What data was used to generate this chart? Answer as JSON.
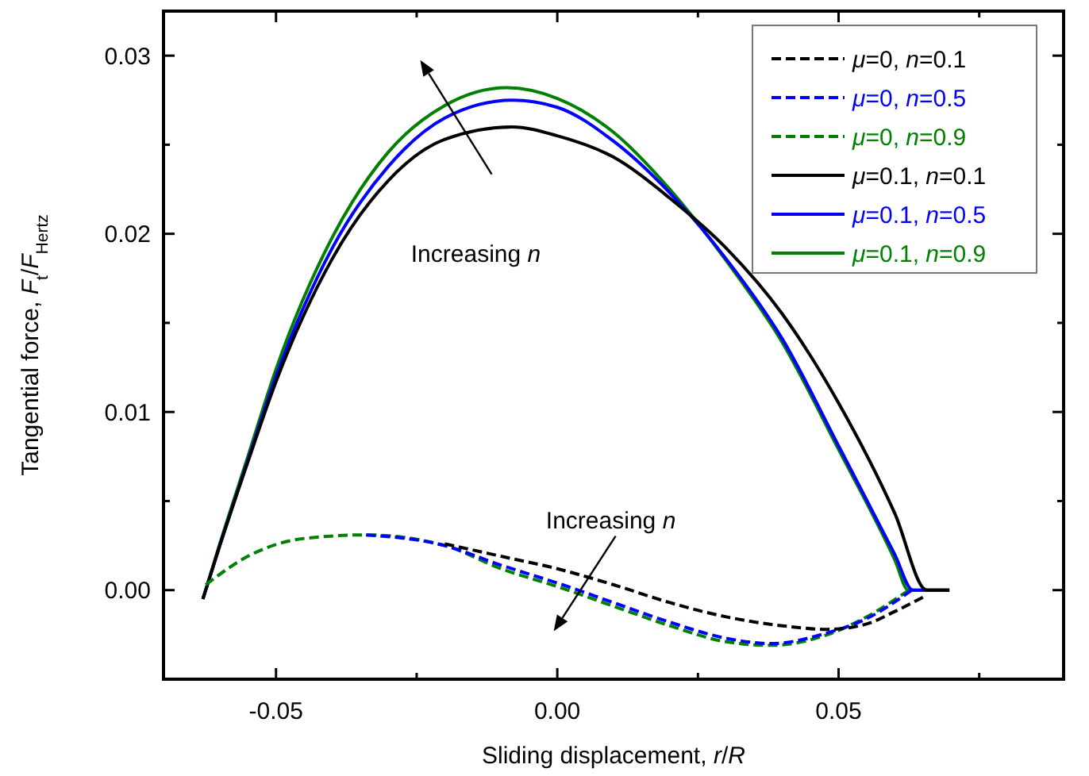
{
  "chart_data": {
    "type": "line",
    "xlabel": "Sliding displacement, r/R",
    "ylabel": "Tangential force, F$_{t}$/F$_{Hertz}$",
    "xlim": [
      -0.07,
      0.09
    ],
    "ylim": [
      -0.005,
      0.0325
    ],
    "xticks": [
      {
        "value": -0.05,
        "label": "-0.05"
      },
      {
        "value": -0.025,
        "label": null
      },
      {
        "value": 0,
        "label": "0.00"
      },
      {
        "value": 0.025,
        "label": null
      },
      {
        "value": 0.05,
        "label": "0.05"
      },
      {
        "value": 0.075,
        "label": null
      }
    ],
    "yticks": [
      {
        "value": 0,
        "label": "0.00"
      },
      {
        "value": 0.005,
        "label": null
      },
      {
        "value": 0.01,
        "label": "0.01"
      },
      {
        "value": 0.015,
        "label": null
      },
      {
        "value": 0.02,
        "label": "0.02"
      },
      {
        "value": 0.025,
        "label": null
      },
      {
        "value": 0.03,
        "label": "0.03"
      }
    ],
    "grid": false,
    "legend": "top right",
    "marker": "none",
    "series": [
      {
        "name": "μ=0, n=0.1",
        "color": "#000000",
        "line_style": "dashed",
        "x": [
          -0.02,
          -0.01,
          0,
          0.01,
          0.02,
          0.03,
          0.04,
          0.048,
          0.055,
          0.06,
          0.065
        ],
        "values": [
          0.0026,
          0.0019,
          0.0012,
          0.0003,
          -0.0007,
          -0.0015,
          -0.002,
          -0.0022,
          -0.0019,
          -0.0012,
          -0.0004
        ]
      },
      {
        "name": "μ=0, n=0.5",
        "color": "#0000ff",
        "line_style": "dashed",
        "x": [
          -0.034,
          -0.02,
          -0.01,
          0,
          0.01,
          0.02,
          0.03,
          0.038,
          0.048,
          0.055,
          0.063
        ],
        "values": [
          0.0031,
          0.0025,
          0.0014,
          0.0004,
          -0.0007,
          -0.0018,
          -0.0027,
          -0.003,
          -0.0024,
          -0.0016,
          0
        ]
      },
      {
        "name": "μ=0, n=0.9",
        "color": "#008000",
        "line_style": "dashed",
        "x": [
          -0.0625,
          -0.055,
          -0.045,
          -0.034,
          -0.02,
          -0.01,
          0,
          0.01,
          0.02,
          0.03,
          0.038,
          0.048,
          0.055,
          0.0625
        ],
        "values": [
          0.0003,
          0.0019,
          0.0029,
          0.0031,
          0.0025,
          0.0012,
          0.0002,
          -0.0009,
          -0.002,
          -0.0029,
          -0.0031,
          -0.0025,
          -0.0015,
          0
        ]
      },
      {
        "name": "μ=0.1, n=0.1",
        "color": "#000000",
        "line_style": "solid",
        "x": [
          -0.063,
          -0.06,
          -0.055,
          -0.05,
          -0.04,
          -0.03,
          -0.02,
          -0.008,
          0,
          0.01,
          0.02,
          0.03,
          0.04,
          0.05,
          0.06,
          0.0657,
          0.0697
        ],
        "values": [
          -0.0005,
          0.0025,
          0.0072,
          0.0117,
          0.0186,
          0.023,
          0.0253,
          0.026,
          0.0255,
          0.0243,
          0.022,
          0.0192,
          0.0155,
          0.0105,
          0.0043,
          0,
          0
        ]
      },
      {
        "name": "μ=0.1, n=0.5",
        "color": "#0000ff",
        "line_style": "solid",
        "x": [
          -0.063,
          -0.06,
          -0.055,
          -0.05,
          -0.04,
          -0.03,
          -0.02,
          -0.008,
          0,
          0.01,
          0.02,
          0.03,
          0.04,
          0.05,
          0.06,
          0.0632,
          0.0697
        ],
        "values": [
          -0.0005,
          0.0025,
          0.0073,
          0.012,
          0.0192,
          0.0238,
          0.0265,
          0.0275,
          0.0271,
          0.0252,
          0.0223,
          0.0186,
          0.0141,
          0.0081,
          0.002,
          0,
          0
        ]
      },
      {
        "name": "μ=0.1, n=0.9",
        "color": "#008000",
        "line_style": "solid",
        "x": [
          -0.063,
          -0.06,
          -0.055,
          -0.05,
          -0.04,
          -0.03,
          -0.02,
          -0.009,
          0,
          0.01,
          0.02,
          0.03,
          0.04,
          0.05,
          0.06,
          0.0624,
          0.0697
        ],
        "values": [
          -0.0005,
          0.0026,
          0.0075,
          0.0124,
          0.0198,
          0.0246,
          0.0272,
          0.0282,
          0.0276,
          0.0257,
          0.0225,
          0.0185,
          0.0139,
          0.0079,
          0.0017,
          0,
          0
        ]
      }
    ],
    "annotations": [
      "Increasing n",
      "Increasing n"
    ]
  }
}
